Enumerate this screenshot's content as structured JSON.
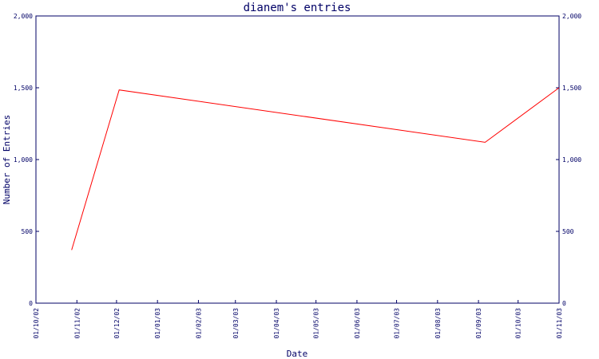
{
  "chart_data": {
    "type": "line",
    "title": "dianem's entries",
    "xlabel": "Date",
    "ylabel": "Number of Entries",
    "x_ticks": [
      "01/10/02",
      "01/11/02",
      "01/12/02",
      "01/01/03",
      "01/02/03",
      "01/03/03",
      "01/04/03",
      "01/05/03",
      "01/06/03",
      "01/07/03",
      "01/08/03",
      "01/09/03",
      "01/10/03",
      "01/11/03"
    ],
    "y_ticks": [
      "0",
      "500",
      "1,000",
      "1,500",
      "2,000"
    ],
    "ylim": [
      0,
      2000
    ],
    "xlim": [
      "2002-10-01",
      "2003-11-01"
    ],
    "series": [
      {
        "color": "#ff0000",
        "points": [
          {
            "x": "2002-10-28",
            "y": 370
          },
          {
            "x": "2002-12-03",
            "y": 1485
          },
          {
            "x": "2003-09-06",
            "y": 1120
          },
          {
            "x": "2003-11-01",
            "y": 1500
          }
        ]
      }
    ],
    "grid": false,
    "legend": "none",
    "axis_color": "#000066"
  }
}
